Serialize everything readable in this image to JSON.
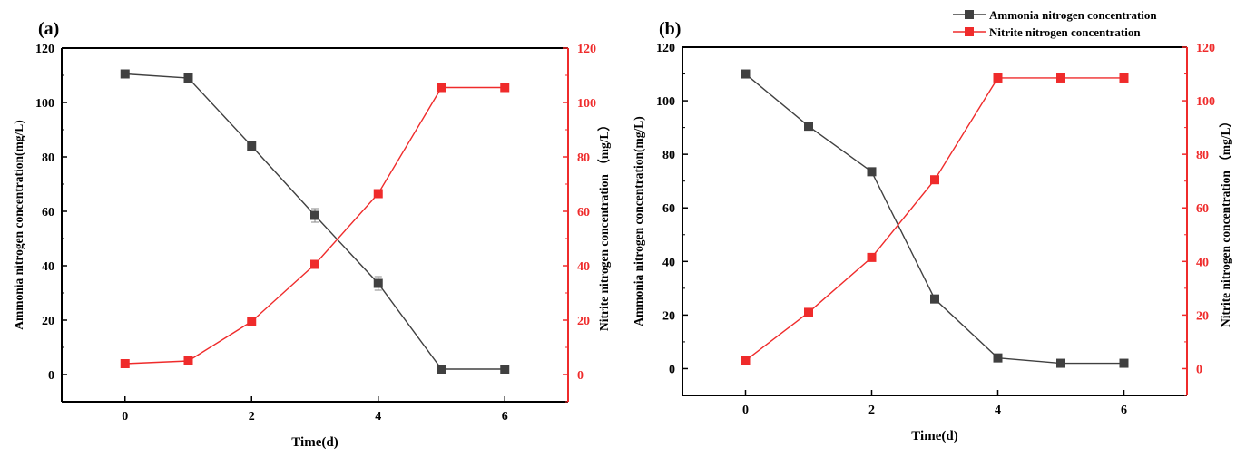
{
  "legend": {
    "series_names": [
      "Ammonia nitrogen concentration",
      "Nitrite nitrogen concentration"
    ]
  },
  "colors": {
    "left": "#404040",
    "right": "#ef2b2b"
  },
  "chart_data": [
    {
      "panel_label": "(a)",
      "type": "line",
      "xlabel": "Time(d)",
      "ylabel_left": "Ammonia nitrogen concentration(mg/L)",
      "ylabel_right": "Nitrite nitrogen concentration （mg/L）",
      "xlim": [
        -1,
        7
      ],
      "ylim_left": [
        -10,
        120
      ],
      "ylim_right": [
        -10,
        120
      ],
      "xticks": [
        0,
        2,
        4,
        6
      ],
      "yticks": [
        0,
        20,
        40,
        60,
        80,
        100,
        120
      ],
      "x": [
        0,
        1,
        2,
        3,
        4,
        5,
        6
      ],
      "series": [
        {
          "name": "Ammonia nitrogen concentration",
          "axis": "left",
          "color": "#404040",
          "values": [
            110.5,
            109,
            84,
            58.5,
            33.5,
            2,
            2
          ],
          "errors": [
            0,
            0,
            0,
            2.5,
            2.5,
            0,
            0
          ]
        },
        {
          "name": "Nitrite nitrogen concentration",
          "axis": "right",
          "color": "#ef2b2b",
          "values": [
            4,
            5,
            19.5,
            40.5,
            66.5,
            105.5,
            105.5
          ],
          "errors": [
            0,
            0,
            0,
            0,
            0,
            0,
            0
          ]
        }
      ]
    },
    {
      "panel_label": "(b)",
      "type": "line",
      "xlabel": "Time(d)",
      "ylabel_left": "Ammonia nitrogen concentration(mg/L)",
      "ylabel_right": "Nitrite nitrogen concentration （mg/L）",
      "xlim": [
        -1,
        7
      ],
      "ylim_left": [
        -10,
        120
      ],
      "ylim_right": [
        -10,
        120
      ],
      "xticks": [
        0,
        2,
        4,
        6
      ],
      "yticks": [
        0,
        20,
        40,
        60,
        80,
        100,
        120
      ],
      "x": [
        0,
        1,
        2,
        3,
        4,
        5,
        6
      ],
      "series": [
        {
          "name": "Ammonia nitrogen concentration",
          "axis": "left",
          "color": "#404040",
          "values": [
            110,
            90.5,
            73.5,
            26,
            4,
            2,
            2
          ],
          "errors": [
            0,
            0,
            0,
            0,
            0,
            0,
            0
          ]
        },
        {
          "name": "Nitrite nitrogen concentration",
          "axis": "right",
          "color": "#ef2b2b",
          "values": [
            3,
            21,
            41.5,
            70.5,
            108.5,
            108.5,
            108.5
          ],
          "errors": [
            0,
            0,
            0,
            0,
            0,
            0,
            0
          ]
        }
      ]
    }
  ]
}
